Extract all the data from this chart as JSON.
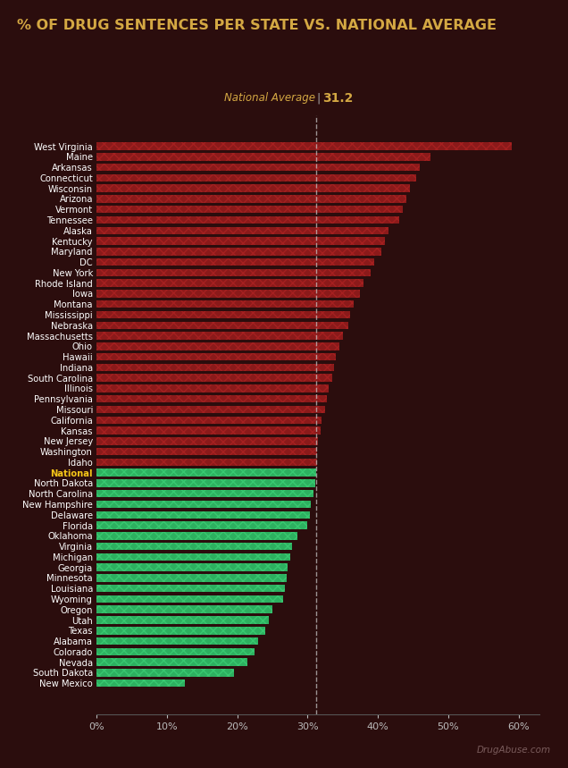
{
  "title": "% OF DRUG SENTENCES PER STATE VS. NATIONAL AVERAGE",
  "national_avg": 31.2,
  "states": [
    "West Virginia",
    "Maine",
    "Arkansas",
    "Connecticut",
    "Wisconsin",
    "Arizona",
    "Vermont",
    "Tennessee",
    "Alaska",
    "Kentucky",
    "Maryland",
    "DC",
    "New York",
    "Rhode Island",
    "Iowa",
    "Montana",
    "Mississippi",
    "Nebraska",
    "Massachusetts",
    "Ohio",
    "Hawaii",
    "Indiana",
    "South Carolina",
    "Illinois",
    "Pennsylvania",
    "Missouri",
    "California",
    "Kansas",
    "New Jersey",
    "Washington",
    "Idaho",
    "National",
    "North Dakota",
    "North Carolina",
    "New Hampshire",
    "Delaware",
    "Florida",
    "Oklahoma",
    "Virginia",
    "Michigan",
    "Georgia",
    "Minnesota",
    "Louisiana",
    "Wyoming",
    "Oregon",
    "Utah",
    "Texas",
    "Alabama",
    "Colorado",
    "Nevada",
    "South Dakota",
    "New Mexico"
  ],
  "values": [
    59.0,
    47.5,
    46.0,
    45.5,
    44.5,
    44.0,
    43.5,
    43.0,
    41.5,
    41.0,
    40.5,
    39.5,
    39.0,
    38.0,
    37.5,
    36.5,
    36.0,
    35.8,
    35.0,
    34.5,
    34.0,
    33.8,
    33.5,
    33.0,
    32.8,
    32.5,
    32.0,
    31.8,
    31.5,
    31.4,
    31.3,
    31.2,
    31.1,
    30.8,
    30.5,
    30.3,
    30.0,
    28.5,
    27.8,
    27.5,
    27.2,
    27.0,
    26.8,
    26.5,
    25.0,
    24.5,
    24.0,
    23.0,
    22.5,
    21.5,
    19.5,
    12.5
  ],
  "background_color": "#2b0d0d",
  "bar_color_above": "#8b1a1a",
  "bar_color_above_hatch": "#a52020",
  "bar_color_national": "#2db060",
  "bar_color_below": "#2db060",
  "bar_color_below_hatch": "#38c870",
  "national_label_color": "#f5c518",
  "title_color": "#d4a843",
  "axis_label_color": "#cccccc",
  "dashed_line_color": "#cccccc",
  "national_avg_text_color": "#d4a843",
  "watermark_color": "#7a5c5c"
}
